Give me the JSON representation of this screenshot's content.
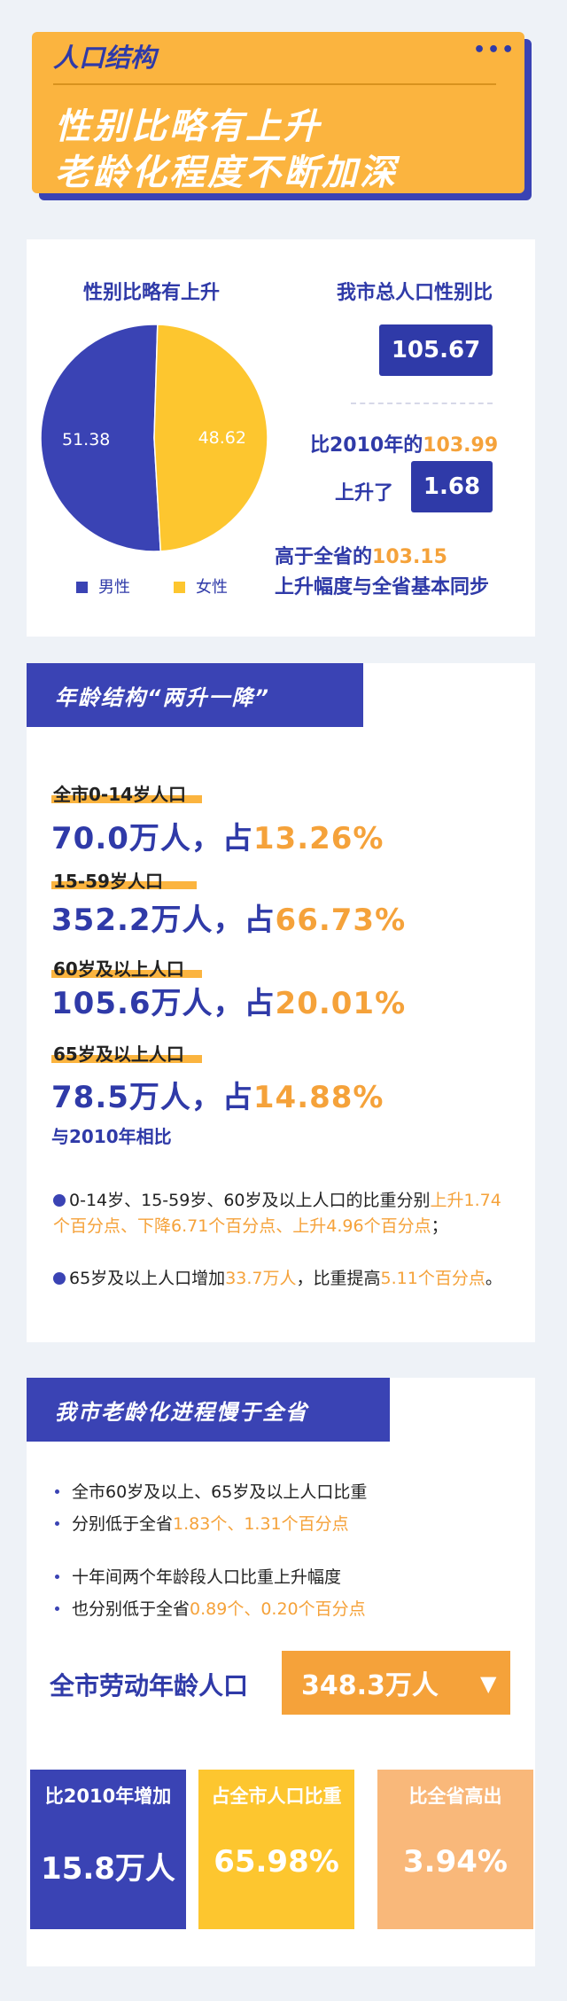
{
  "header": {
    "tag": "人口结构",
    "menu_dots": "•••",
    "title_line1": "性别比略有上升",
    "title_line2": "老龄化程度不断加深"
  },
  "gender": {
    "pie_title": "性别比略有上升",
    "total_ratio_title": "我市总人口性别比",
    "total_ratio_value": "105.67",
    "compare_2010_prefix": "比2010年的",
    "compare_2010_value": "103.99",
    "rise_prefix": "上升了",
    "rise_value": "1.68",
    "province_prefix": "高于全省的",
    "province_value": "103.15",
    "province_note": "上升幅度与全省基本同步"
  },
  "chart_data": {
    "type": "pie",
    "slices": [
      {
        "label": "男性",
        "value": 51.38,
        "value_text": "51.38",
        "color": "#3a43b4"
      },
      {
        "label": "女性",
        "value": 48.62,
        "value_text": "48.62",
        "color": "#fdc62f"
      }
    ],
    "legend_placement": "bottom"
  },
  "age": {
    "section_title": "年龄结构“两升一降”",
    "groups": [
      {
        "label": "全市0-14岁人口",
        "amount": "70.0万人，占",
        "pct": "13.26%"
      },
      {
        "label": "15-59岁人口",
        "amount": "352.2万人，占",
        "pct": "66.73%"
      },
      {
        "label": "60岁及以上人口",
        "amount": "105.6万人，占",
        "pct": "20.01%"
      },
      {
        "label": "65岁及以上人口",
        "amount": "78.5万人，占",
        "pct": "14.88%"
      }
    ],
    "compare_title": "与2010年相比",
    "p1_part1": "0-14岁、15-59岁、60岁及以上人口的比重分别",
    "p1_part2": "上升1.74个百分点、下降6.71个百分点、上升4.96个百分点",
    "p1_part3": "；",
    "p2_part1": "65岁及以上人口增加",
    "p2_part2": "33.7万人",
    "p2_part3": "，比重提高",
    "p2_part4": "5.11个百分点",
    "p2_part5": "。"
  },
  "aging": {
    "section_title": "我市老龄化进程慢于全省",
    "b1": "全市60岁及以上、65岁及以上人口比重",
    "b2_prefix": "分别低于全省",
    "b2_value": "1.83个、1.31个百分点",
    "b3": "十年间两个年龄段人口比重上升幅度",
    "b4_prefix": "也分别低于全省",
    "b4_value": "0.89个、0.20个百分点",
    "labor_label": "全市劳动年龄人口",
    "labor_value": "348.3万人",
    "labor_arrow": "▼",
    "stats": [
      {
        "title": "比2010年增加",
        "value": "15.8万人",
        "color": "#3a43b4"
      },
      {
        "title": "占全市人口比重",
        "value": "65.98%",
        "color": "#fdc62f"
      },
      {
        "title": "比全省高出",
        "value": "3.94%",
        "color": "#f9b87a"
      }
    ]
  }
}
